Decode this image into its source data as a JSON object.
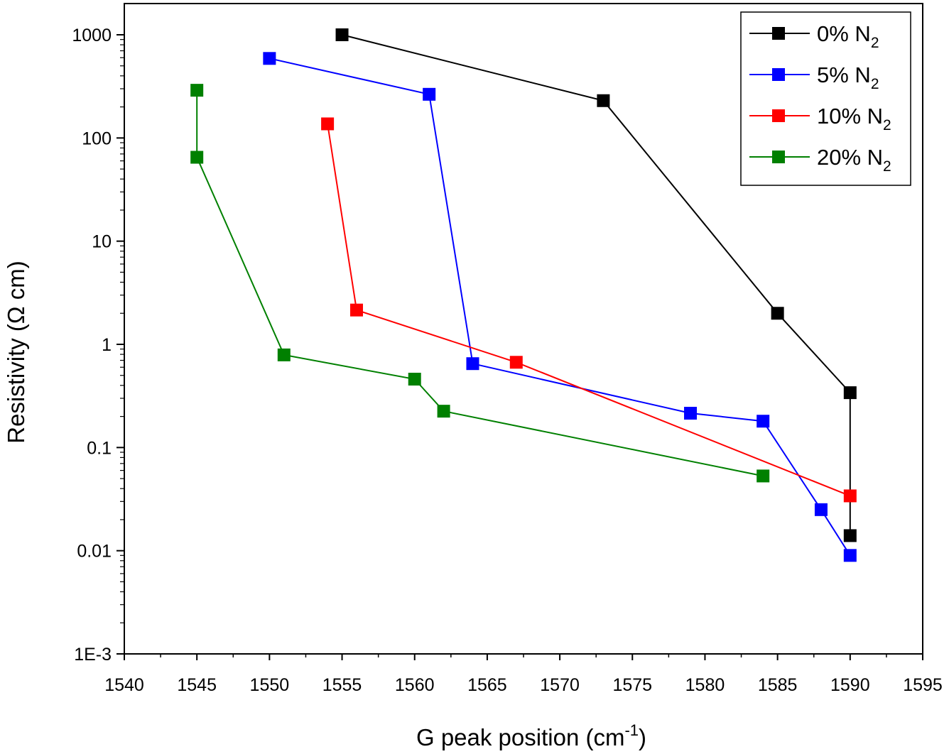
{
  "chart_data": {
    "type": "scatter",
    "title": "",
    "xlabel": "G peak position (cm",
    "xlabel_sup": "-1",
    "xlabel_tail": ")",
    "ylabel": "Resistivity (Ω cm)",
    "xlim": [
      1540,
      1595
    ],
    "ylim": [
      0.001,
      1000
    ],
    "yscale": "log",
    "grid": false,
    "legend_position": "top-right",
    "x_ticks": [
      1540,
      1545,
      1550,
      1555,
      1560,
      1565,
      1570,
      1575,
      1580,
      1585,
      1590,
      1595
    ],
    "x_tick_labels": [
      "1540",
      "1545",
      "1550",
      "1555",
      "1560",
      "1565",
      "1570",
      "1575",
      "1580",
      "1585",
      "1590",
      "1595"
    ],
    "y_ticks": [
      0.001,
      0.01,
      0.1,
      1,
      10,
      100,
      1000
    ],
    "y_tick_labels": [
      "1E-3",
      "0.01",
      "0.1",
      "1",
      "10",
      "100",
      "1000"
    ],
    "series": [
      {
        "name": "0% N",
        "sub": "2",
        "color": "#000000",
        "x": [
          1555,
          1573,
          1585,
          1590,
          1590
        ],
        "y": [
          1000,
          230,
          2.0,
          0.34,
          0.014
        ]
      },
      {
        "name": "5% N",
        "sub": "2",
        "color": "#0000ff",
        "x": [
          1550,
          1561,
          1564,
          1579,
          1584,
          1588,
          1590
        ],
        "y": [
          590,
          265,
          0.65,
          0.215,
          0.18,
          0.025,
          0.009
        ]
      },
      {
        "name": "10% N",
        "sub": "2",
        "color": "#ff0000",
        "x": [
          1554,
          1556,
          1567,
          1590
        ],
        "y": [
          137,
          2.15,
          0.67,
          0.034
        ]
      },
      {
        "name": "20% N",
        "sub": "2",
        "color": "#008000",
        "x": [
          1545,
          1545,
          1551,
          1560,
          1562,
          1584
        ],
        "y": [
          290,
          65,
          0.79,
          0.46,
          0.225,
          0.053
        ]
      }
    ]
  }
}
